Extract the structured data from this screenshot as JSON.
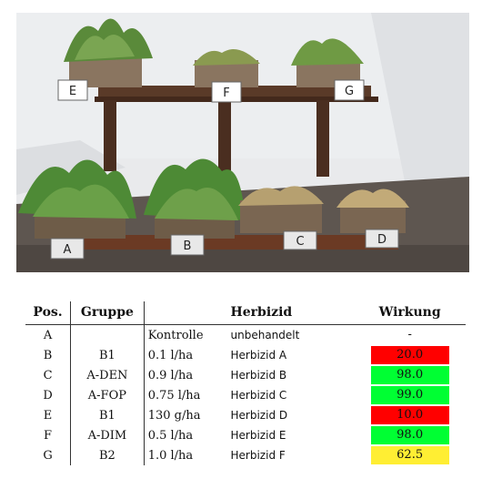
{
  "photo": {
    "top_labels": [
      "E",
      "F",
      "G"
    ],
    "bottom_labels": [
      "A",
      "B",
      "C",
      "D"
    ]
  },
  "table": {
    "headers": {
      "pos": "Pos.",
      "group": "Gruppe",
      "dose": "",
      "herbicide": "Herbizid",
      "effect": "Wirkung"
    },
    "rows": [
      {
        "pos": "A",
        "group": "",
        "dose": "Kontrolle",
        "herbicide": "unbehandelt",
        "effect": "-",
        "color": ""
      },
      {
        "pos": "B",
        "group": "B1",
        "dose": "0.1 l/ha",
        "herbicide": "Herbizid A",
        "effect": "20.0",
        "color": "#ff0000"
      },
      {
        "pos": "C",
        "group": "A-DEN",
        "dose": "0.9 l/ha",
        "herbicide": "Herbizid B",
        "effect": "98.0",
        "color": "#00ff33"
      },
      {
        "pos": "D",
        "group": "A-FOP",
        "dose": "0.75 l/ha",
        "herbicide": "Herbizid C",
        "effect": "99.0",
        "color": "#00ff33"
      },
      {
        "pos": "E",
        "group": "B1",
        "dose": "130 g/ha",
        "herbicide": "Herbizid D",
        "effect": "10.0",
        "color": "#ff0000"
      },
      {
        "pos": "F",
        "group": "A-DIM",
        "dose": "0.5 l/ha",
        "herbicide": "Herbizid E",
        "effect": "98.0",
        "color": "#00ff33"
      },
      {
        "pos": "G",
        "group": "B2",
        "dose": "1.0 l/ha",
        "herbicide": "Herbizid F",
        "effect": "62.5",
        "color": "#ffee33"
      }
    ]
  }
}
